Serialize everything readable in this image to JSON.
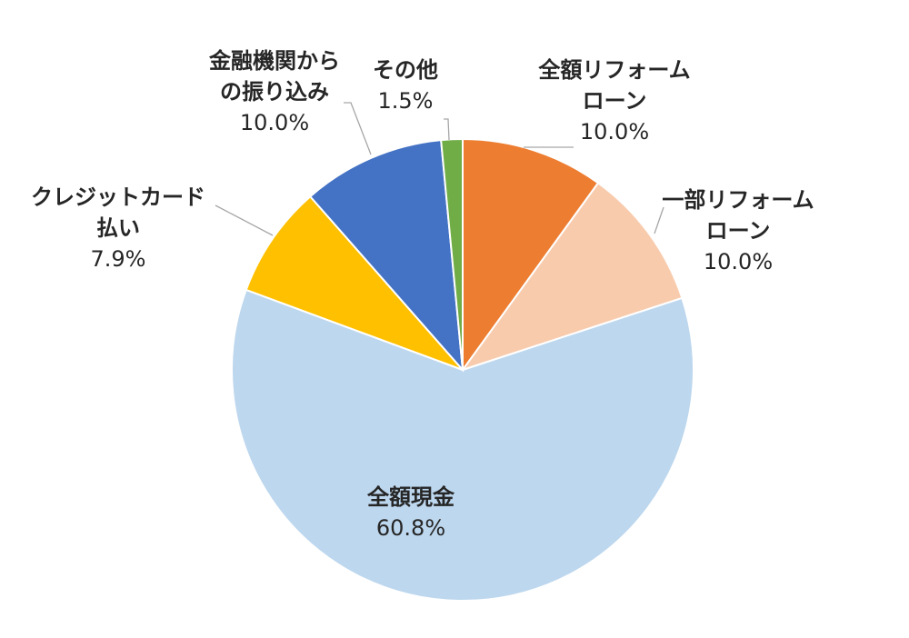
{
  "chart_data": {
    "type": "pie",
    "title": "",
    "start_angle_deg": 0,
    "direction": "clockwise",
    "slices": [
      {
        "name_lines": [
          "全額リフォーム",
          "ローン"
        ],
        "label": "全額リフォームローン",
        "value": 10.0,
        "value_text": "10.0%",
        "color": "#ED7D31"
      },
      {
        "name_lines": [
          "一部リフォーム",
          "ローン"
        ],
        "label": "一部リフォームローン",
        "value": 10.0,
        "value_text": "10.0%",
        "color": "#F8CBAD"
      },
      {
        "name_lines": [
          "全額現金"
        ],
        "label": "全額現金",
        "value": 60.8,
        "value_text": "60.8%",
        "color": "#BDD7EE"
      },
      {
        "name_lines": [
          "クレジットカード",
          "払い"
        ],
        "label": "クレジットカード払い",
        "value": 7.9,
        "value_text": "7.9%",
        "color": "#FFC000"
      },
      {
        "name_lines": [
          "金融機関から",
          "の振り込み"
        ],
        "label": "金融機関からの振り込み",
        "value": 10.0,
        "value_text": "10.0%",
        "color": "#4472C4"
      },
      {
        "name_lines": [
          "その他"
        ],
        "label": "その他",
        "value": 1.5,
        "value_text": "1.5%",
        "color": "#70AD47"
      }
    ]
  }
}
